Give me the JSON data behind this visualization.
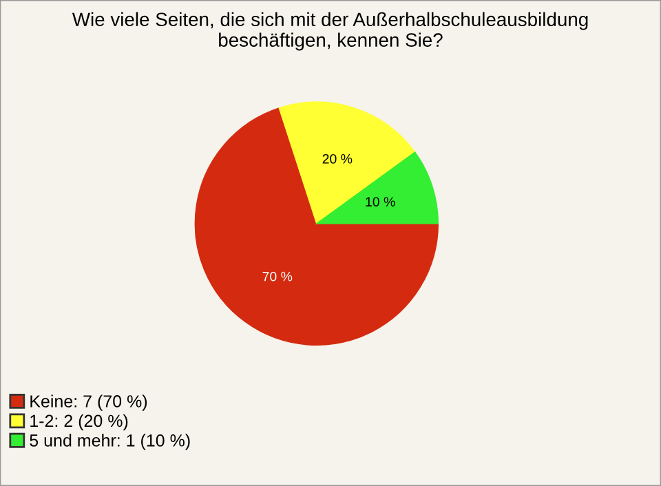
{
  "chart_data": {
    "type": "pie",
    "title": "Wie viele Seiten, die sich mit der Außerhalbschuleausbildung\nbeschäftigen, kennen Sie?",
    "categories": [
      "Keine: 7 (70 %)",
      "1-2: 2 (20 %)",
      "5 und mehr: 1 (10 %)"
    ],
    "values": [
      70,
      20,
      10
    ],
    "value_labels": [
      "70 %",
      "20 %",
      "10 %"
    ],
    "colors": [
      "#d42a10",
      "#ffff33",
      "#33ee33"
    ],
    "legend": "bottom left"
  }
}
